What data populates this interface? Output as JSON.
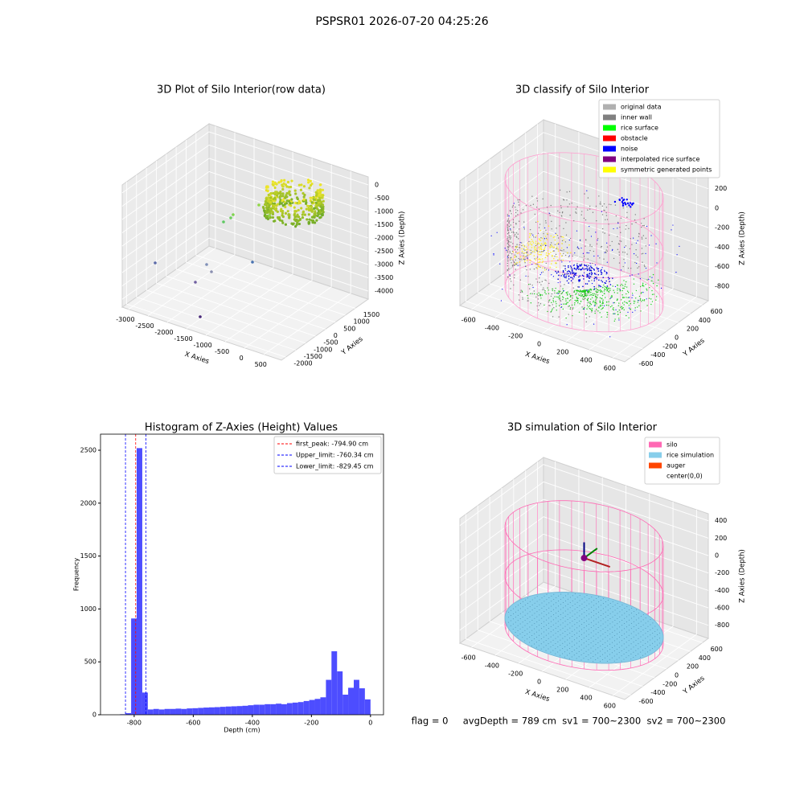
{
  "title": "PSPSR01 2026-07-20 04:25:26",
  "chart_data": [
    {
      "type": "scatter3d",
      "title": "3D Plot of Silo Interior(row data)",
      "xlabel": "X Axies",
      "ylabel": "Y Axies",
      "zlabel": "Z Axies (Depth)",
      "xlim": [
        -3165,
        953
      ],
      "ylim": [
        -2219,
        2156
      ],
      "zlim": [
        -4300,
        300
      ],
      "xticks": [
        -3000,
        -2500,
        -2000,
        -1500,
        -1000,
        -500,
        0,
        500
      ],
      "yticks": [
        -2000,
        -1500,
        -1000,
        -500,
        0,
        500,
        1000,
        1500
      ],
      "zticks": [
        -4000,
        -3500,
        -3000,
        -2500,
        -2000,
        -1500,
        -1000,
        -500,
        0
      ]
    },
    {
      "type": "scatter3d",
      "title": "3D classify of Silo Interior",
      "xlabel": "X Axies",
      "ylabel": "Y Axies",
      "zlabel": "Z Axies (Depth)",
      "xlim": [
        -700,
        700
      ],
      "ylim": [
        -700,
        700
      ],
      "zlim": [
        -950,
        330
      ],
      "xticks": [
        -600,
        -400,
        -200,
        0,
        200,
        400,
        600
      ],
      "yticks": [
        -600,
        -400,
        -200,
        0,
        200,
        400,
        600
      ],
      "zticks": [
        -800,
        -600,
        -400,
        -200,
        0,
        200
      ],
      "legend": [
        {
          "name": "original data",
          "color": "#b0b0b0"
        },
        {
          "name": "inner wall",
          "color": "#808080"
        },
        {
          "name": "rice surface",
          "color": "#00ff00"
        },
        {
          "name": "obstacle",
          "color": "#ff0000"
        },
        {
          "name": "noise",
          "color": "#0000ff"
        },
        {
          "name": "interpolated rice surface",
          "color": "#800080"
        },
        {
          "name": "symmetric generated points",
          "color": "#ffff00"
        }
      ]
    },
    {
      "type": "histogram",
      "title": "Histogram of Z-Axies (Height) Values",
      "xlabel": "Depth (cm)",
      "ylabel": "Frequency",
      "color": "#4d4dff",
      "bins": [
        -848,
        -829.2,
        -810.3,
        -791.5,
        -772.6,
        -753.8,
        -735.0,
        -716.1,
        -697.3,
        -678.4,
        -659.6,
        -640.8,
        -621.9,
        -603.1,
        -584.2,
        -565.4,
        -546.6,
        -527.7,
        -508.9,
        -490.0,
        -471.2,
        -452.4,
        -433.5,
        -414.7,
        -395.8,
        -377.0,
        -358.2,
        -339.3,
        -320.5,
        -301.6,
        -282.8,
        -264.0,
        -245.1,
        -226.3,
        -207.4,
        -188.6,
        -169.8,
        -150.9,
        -132.1,
        -113.2,
        -94.4,
        -75.6,
        -56.7,
        -37.9,
        -19.0,
        0
      ],
      "counts": [
        5,
        15,
        910,
        2520,
        210,
        50,
        55,
        50,
        55,
        55,
        58,
        55,
        60,
        62,
        65,
        68,
        70,
        72,
        75,
        78,
        80,
        82,
        85,
        90,
        95,
        95,
        100,
        100,
        105,
        100,
        110,
        115,
        120,
        130,
        140,
        150,
        165,
        330,
        600,
        410,
        190,
        255,
        330,
        250,
        145
      ],
      "xlim": [
        -914,
        44
      ],
      "ylim": [
        0,
        2652
      ],
      "xticks": [
        -800,
        -600,
        -400,
        -200,
        0
      ],
      "yticks": [
        0,
        500,
        1000,
        1500,
        2000,
        2500
      ],
      "vlines": [
        {
          "name": "first_peak: -794.90 cm",
          "value": -794.9,
          "color": "#ff0000"
        },
        {
          "name": "Upper_limit: -760.34 cm",
          "value": -760.34,
          "color": "#0000ff"
        },
        {
          "name": "Lower_limit: -829.45 cm",
          "value": -829.45,
          "color": "#0000ff"
        }
      ],
      "legend_position": "upper right"
    },
    {
      "type": "scatter3d",
      "title": "3D simulation of Silo Interior",
      "xlabel": "X Axies",
      "ylabel": "Y Axies",
      "zlabel": "Z Axies (Depth)",
      "xlim": [
        -700,
        700
      ],
      "ylim": [
        -700,
        700
      ],
      "zlim": [
        -950,
        480
      ],
      "xticks": [
        -600,
        -400,
        -200,
        0,
        200,
        400,
        600
      ],
      "yticks": [
        -600,
        -400,
        -200,
        0,
        200,
        400,
        600
      ],
      "zticks": [
        -800,
        -600,
        -400,
        -200,
        0,
        200,
        400
      ],
      "legend": [
        {
          "name": "silo",
          "color": "#ff69b4"
        },
        {
          "name": "rice simulation",
          "color": "#87ceeb"
        },
        {
          "name": "auger",
          "color": "#ff4500"
        },
        {
          "name": "center(0,0)",
          "color": "#ffffff"
        }
      ]
    }
  ],
  "footer": "flag = 0     avgDepth = 789 cm  sv1 = 700~2300  sv2 = 700~2300"
}
